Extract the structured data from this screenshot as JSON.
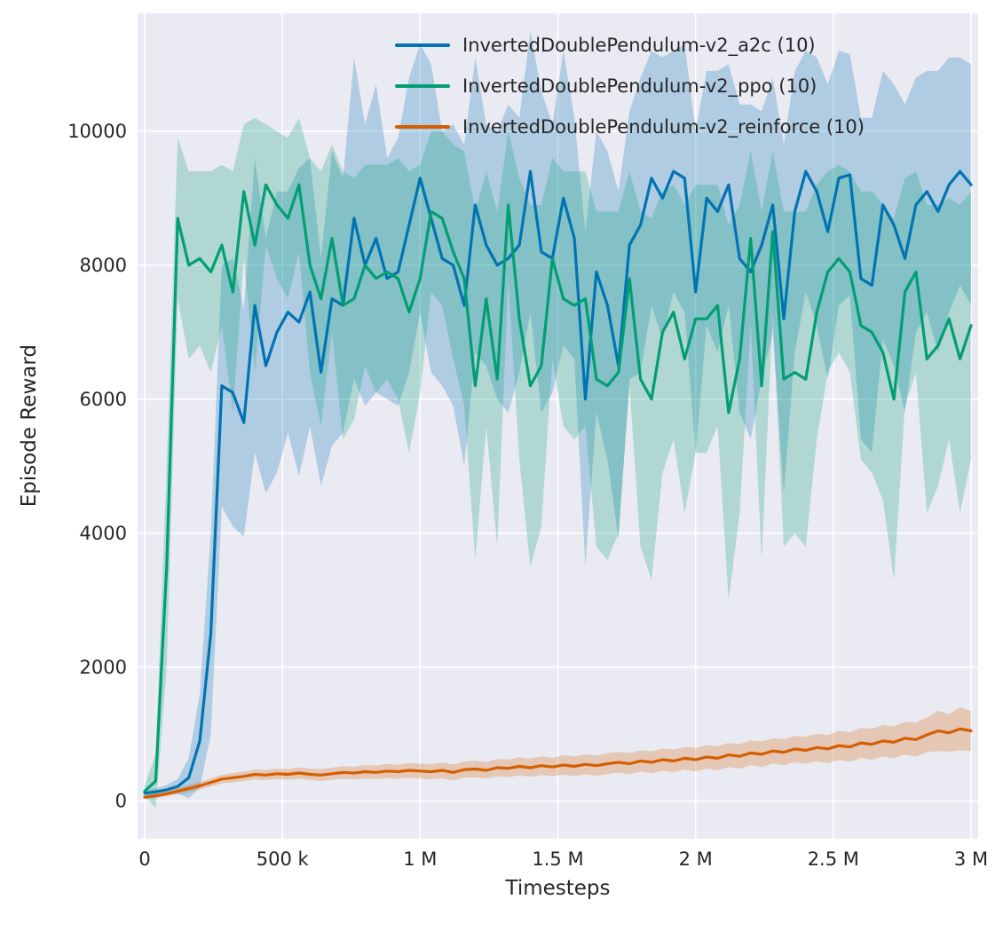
{
  "figure": {
    "background": "#ffffff",
    "plot_background": "#eaeaf2",
    "grid_color": "#ffffff",
    "text_color": "#262626"
  },
  "chart_data": {
    "type": "line",
    "title": "",
    "xlabel": "Timesteps",
    "ylabel": "Episode Reward",
    "xlim": [
      0,
      3000000
    ],
    "ylim": [
      -560,
      11760
    ],
    "grid": true,
    "legend_position": "upper center",
    "band_opacity": 0.25,
    "xticks": {
      "values": [
        0,
        500000,
        1000000,
        1500000,
        2000000,
        2500000,
        3000000
      ],
      "labels": [
        "0",
        "500 k",
        "1 M",
        "1.5 M",
        "2 M",
        "2.5 M",
        "3 M"
      ]
    },
    "yticks": {
      "values": [
        0,
        2000,
        4000,
        6000,
        8000,
        10000
      ],
      "labels": [
        "0",
        "2000",
        "4000",
        "6000",
        "8000",
        "10000"
      ]
    },
    "x": [
      0,
      40000,
      80000,
      120000,
      160000,
      200000,
      240000,
      280000,
      320000,
      360000,
      400000,
      440000,
      480000,
      520000,
      560000,
      600000,
      640000,
      680000,
      720000,
      760000,
      800000,
      840000,
      880000,
      920000,
      960000,
      1000000,
      1040000,
      1080000,
      1120000,
      1160000,
      1200000,
      1240000,
      1280000,
      1320000,
      1360000,
      1400000,
      1440000,
      1480000,
      1520000,
      1560000,
      1600000,
      1640000,
      1680000,
      1720000,
      1760000,
      1800000,
      1840000,
      1880000,
      1920000,
      1960000,
      2000000,
      2040000,
      2080000,
      2120000,
      2160000,
      2200000,
      2240000,
      2280000,
      2320000,
      2360000,
      2400000,
      2440000,
      2480000,
      2520000,
      2560000,
      2600000,
      2640000,
      2680000,
      2720000,
      2760000,
      2800000,
      2840000,
      2880000,
      2920000,
      2960000,
      3000000
    ],
    "series": [
      {
        "name": "InvertedDoublePendulum-v2_a2c (10)",
        "color": "#0173b2",
        "values": [
          120,
          140,
          170,
          220,
          350,
          900,
          2500,
          6200,
          6100,
          5650,
          7400,
          6500,
          7000,
          7300,
          7150,
          7600,
          6400,
          7500,
          7400,
          8700,
          8000,
          8400,
          7800,
          7900,
          8600,
          9300,
          8700,
          8100,
          8000,
          7400,
          8900,
          8300,
          8000,
          8100,
          8300,
          9400,
          8200,
          8100,
          9000,
          8400,
          6000,
          7900,
          7400,
          6500,
          8300,
          8600,
          9300,
          9000,
          9400,
          9300,
          7600,
          9000,
          8800,
          9200,
          8100,
          7900,
          8300,
          8900,
          7200,
          8800,
          9400,
          9100,
          8500,
          9300,
          9350,
          7800,
          7700,
          8900,
          8600,
          8100,
          8900,
          9100,
          8800,
          9200,
          9400,
          9200
        ],
        "band_halfwidth": [
          40,
          50,
          70,
          110,
          300,
          700,
          1500,
          1800,
          2000,
          1700,
          2200,
          1900,
          2100,
          1800,
          2300,
          2000,
          1700,
          2200,
          1900,
          2400,
          2100,
          2300,
          1800,
          2000,
          2200,
          2000,
          2300,
          1900,
          2100,
          2400,
          2200,
          1800,
          2000,
          2300,
          1900,
          2100,
          2400,
          2000,
          2200,
          1800,
          2500,
          2100,
          2300,
          2600,
          2000,
          2200,
          1900,
          2100,
          1800,
          2000,
          2400,
          1900,
          2100,
          1800,
          2300,
          2500,
          2000,
          1900,
          2600,
          2100,
          1800,
          2000,
          2200,
          1900,
          1800,
          2400,
          2500,
          2000,
          2100,
          2300,
          1900,
          1800,
          2100,
          1900,
          1700,
          1800
        ]
      },
      {
        "name": "InvertedDoublePendulum-v2_ppo (10)",
        "color": "#029e73",
        "values": [
          150,
          300,
          3500,
          8700,
          8000,
          8100,
          7900,
          8300,
          7600,
          9100,
          8300,
          9200,
          8900,
          8700,
          9200,
          8000,
          7500,
          8400,
          7400,
          7500,
          8000,
          7800,
          7900,
          7800,
          7300,
          7800,
          8800,
          8700,
          8200,
          7800,
          6200,
          7500,
          6300,
          8900,
          7200,
          6200,
          6500,
          8100,
          7500,
          7400,
          7500,
          6300,
          6200,
          6400,
          7800,
          6300,
          6000,
          7000,
          7300,
          6600,
          7200,
          7200,
          7400,
          5800,
          6600,
          8400,
          6200,
          8500,
          6300,
          6400,
          6300,
          7300,
          7900,
          8100,
          7900,
          7100,
          7000,
          6700,
          6000,
          7600,
          7900,
          6600,
          6800,
          7200,
          6600,
          7100
        ],
        "band_halfwidth": [
          80,
          400,
          1500,
          1200,
          1400,
          1300,
          1500,
          1200,
          1800,
          1000,
          1900,
          900,
          1100,
          1200,
          1000,
          1600,
          1900,
          1400,
          2000,
          1800,
          1500,
          1700,
          1600,
          1800,
          2100,
          1700,
          1200,
          1300,
          1600,
          1900,
          2600,
          1900,
          2500,
          1100,
          2100,
          2700,
          2400,
          1500,
          1900,
          2000,
          1900,
          2500,
          2600,
          2400,
          1600,
          2500,
          2700,
          2100,
          1900,
          2300,
          2000,
          2000,
          1800,
          2800,
          2300,
          1300,
          2600,
          1200,
          2500,
          2400,
          2500,
          1900,
          1500,
          1400,
          1500,
          2000,
          2100,
          2200,
          2700,
          1700,
          1500,
          2300,
          2100,
          1800,
          2300,
          2000
        ]
      },
      {
        "name": "InvertedDoublePendulum-v2_reinforce (10)",
        "color": "#d55e00",
        "values": [
          60,
          80,
          110,
          150,
          190,
          230,
          280,
          330,
          350,
          370,
          400,
          390,
          410,
          400,
          420,
          400,
          390,
          410,
          430,
          420,
          440,
          430,
          450,
          440,
          460,
          450,
          440,
          460,
          430,
          470,
          480,
          460,
          500,
          490,
          520,
          500,
          530,
          510,
          540,
          520,
          550,
          530,
          560,
          580,
          560,
          600,
          580,
          620,
          600,
          640,
          620,
          660,
          640,
          690,
          670,
          720,
          700,
          750,
          730,
          780,
          760,
          800,
          780,
          830,
          810,
          870,
          850,
          900,
          880,
          940,
          920,
          990,
          1050,
          1020,
          1080,
          1050
        ],
        "band_halfwidth": [
          30,
          35,
          40,
          45,
          50,
          55,
          60,
          65,
          70,
          70,
          75,
          75,
          80,
          80,
          85,
          85,
          90,
          90,
          95,
          95,
          100,
          100,
          105,
          105,
          110,
          110,
          115,
          115,
          120,
          120,
          125,
          125,
          130,
          130,
          135,
          135,
          140,
          140,
          145,
          145,
          150,
          150,
          155,
          155,
          160,
          160,
          165,
          165,
          170,
          170,
          175,
          175,
          180,
          180,
          185,
          185,
          190,
          190,
          195,
          195,
          200,
          205,
          210,
          215,
          220,
          225,
          230,
          235,
          240,
          245,
          250,
          260,
          300,
          280,
          320,
          300
        ]
      }
    ]
  }
}
